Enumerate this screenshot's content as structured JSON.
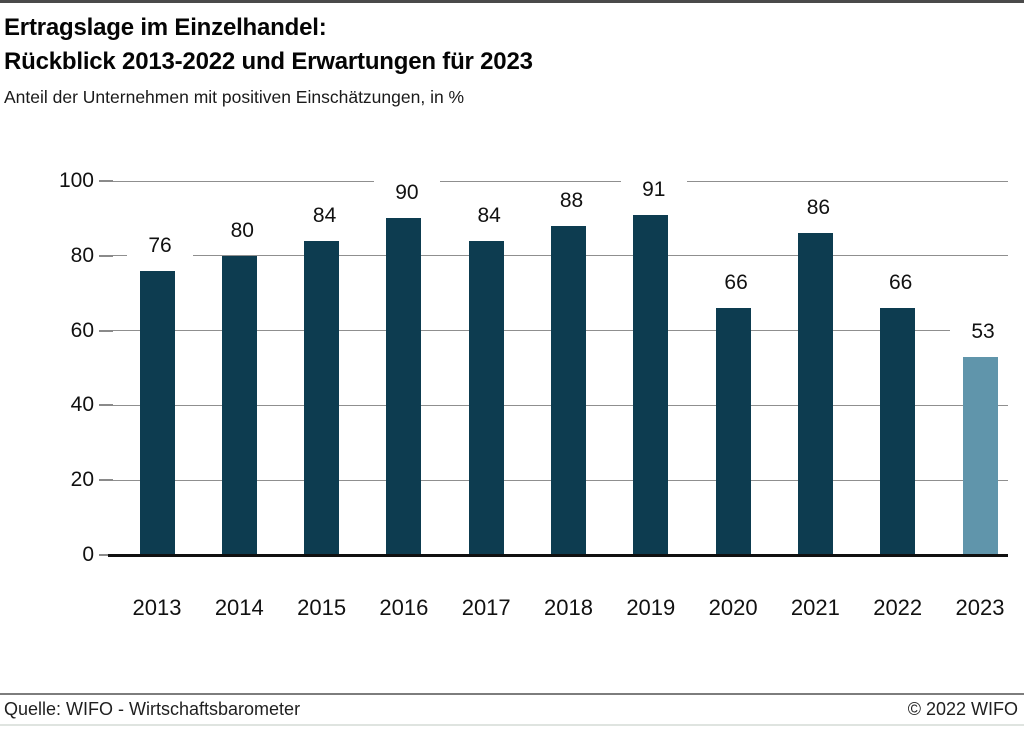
{
  "header": {
    "title_line1": "Ertragslage im Einzelhandel:",
    "title_line2": "Rückblick 2013-2022 und Erwartungen für 2023",
    "subtitle": "Anteil der Unternehmen mit positiven Einschätzungen, in %"
  },
  "chart_data": {
    "type": "bar",
    "title": "Ertragslage im Einzelhandel: Rückblick 2013-2022 und Erwartungen für 2023",
    "subtitle": "Anteil der Unternehmen mit positiven Einschätzungen, in %",
    "categories": [
      "2013",
      "2014",
      "2015",
      "2016",
      "2017",
      "2018",
      "2019",
      "2020",
      "2021",
      "2022",
      "2023"
    ],
    "values": [
      76,
      80,
      84,
      90,
      84,
      88,
      91,
      66,
      86,
      66,
      53
    ],
    "bar_styles": [
      "dark",
      "dark",
      "dark",
      "dark",
      "dark",
      "dark",
      "dark",
      "dark",
      "dark",
      "dark",
      "light"
    ],
    "colors": {
      "dark": "#0d3c50",
      "light": "#6095ab"
    },
    "xlabel": "",
    "ylabel": "",
    "ylim": [
      0,
      100
    ],
    "yticks": [
      0,
      20,
      40,
      60,
      80,
      100
    ],
    "grid": true,
    "legend": false
  },
  "footer": {
    "source": "Quelle: WIFO - Wirtschaftsbarometer",
    "copyright": "© 2022 WIFO"
  }
}
